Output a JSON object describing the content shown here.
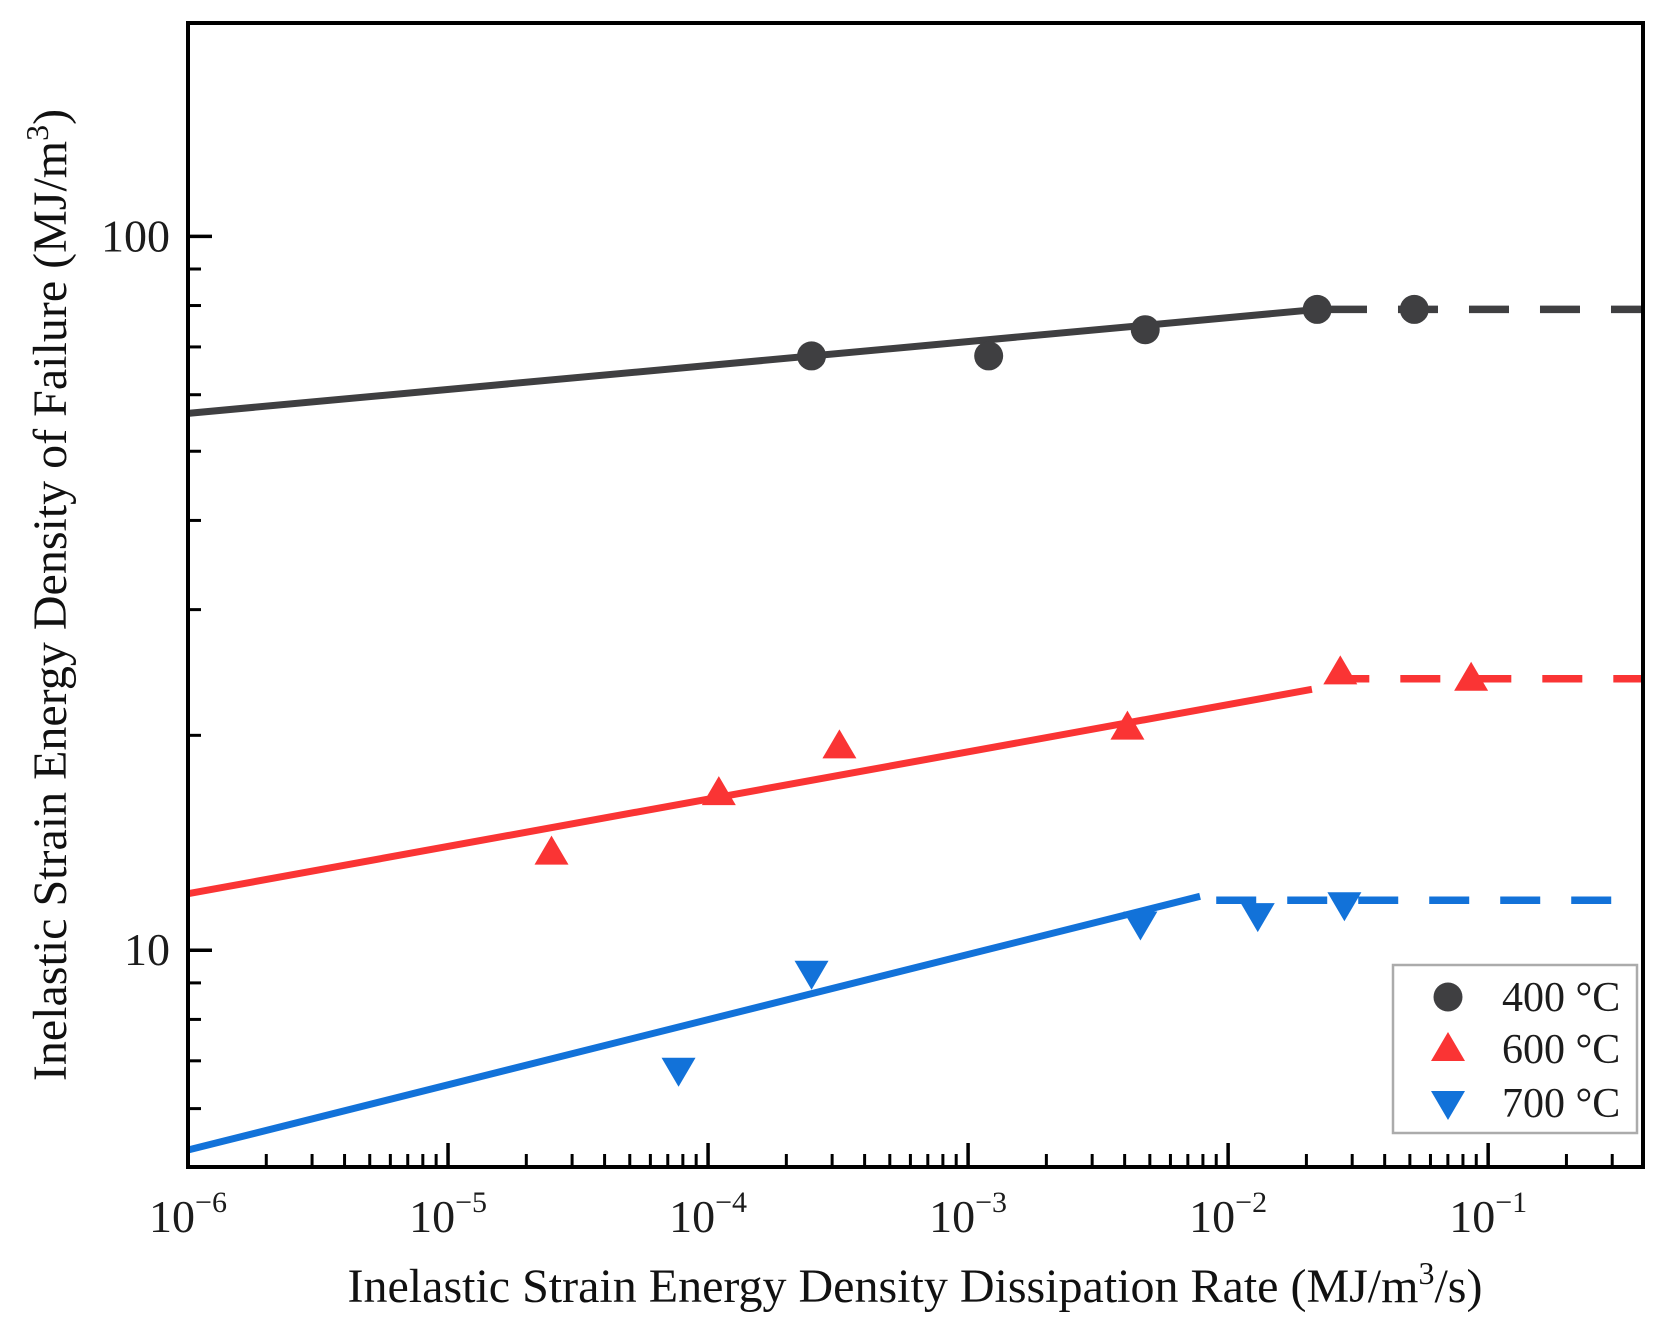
{
  "figure": {
    "background": "#ffffff",
    "frame_color": "#000000",
    "x_axis_title": {
      "main": "Inelastic Strain Energy Density Dissipation Rate (MJ/m",
      "sup": "3",
      "tail": "/s)"
    },
    "y_axis_title": {
      "main": "Inelastic Strain Energy Density of Failure (MJ/m",
      "sup": "3",
      "tail": ")"
    },
    "legend": {
      "entries": [
        {
          "label": "400 °C",
          "marker": "circle",
          "color": "#3f3f41"
        },
        {
          "label": "600 °C",
          "marker": "triangle-up",
          "color": "#fa3434"
        },
        {
          "label": "700 °C",
          "marker": "triangle-down",
          "color": "#1272d9"
        }
      ],
      "border_color": "#ababab"
    }
  },
  "chart_data": {
    "type": "scatter",
    "title": "",
    "xlabel": "Inelastic Strain Energy Density Dissipation Rate (MJ/m3/s)",
    "ylabel": "Inelastic Strain Energy Density of Failure (MJ/m3)",
    "x_scale": "log",
    "y_scale": "log",
    "xlim": [
      1e-06,
      0.394
    ],
    "ylim": [
      4.97,
      199
    ],
    "grid": false,
    "legend_position": "lower right",
    "x_ticks": [
      {
        "v": 1e-06,
        "base": "10",
        "exp": "−6"
      },
      {
        "v": 1e-05,
        "base": "10",
        "exp": "−5"
      },
      {
        "v": 0.0001,
        "base": "10",
        "exp": "−4"
      },
      {
        "v": 0.001,
        "base": "10",
        "exp": "−3"
      },
      {
        "v": 0.01,
        "base": "10",
        "exp": "−2"
      },
      {
        "v": 0.1,
        "base": "10",
        "exp": "−1"
      }
    ],
    "y_ticks": [
      {
        "v": 10,
        "label": "10"
      },
      {
        "v": 100,
        "label": "100"
      }
    ],
    "y_minor_ticks": [
      6,
      7,
      8,
      9,
      20,
      30,
      40,
      50,
      60,
      70,
      80,
      90
    ],
    "series": [
      {
        "name": "400 °C",
        "color": "#3f3f41",
        "marker": "circle",
        "points": [
          [
            0.00025,
            68
          ],
          [
            0.0012,
            68
          ],
          [
            0.0048,
            74
          ],
          [
            0.022,
            79
          ],
          [
            0.052,
            79
          ]
        ],
        "fit_line": {
          "start": [
            1e-06,
            56.5
          ],
          "end": [
            0.022,
            79
          ]
        },
        "plateau": {
          "level": 79,
          "from": 0.024,
          "to": 0.394
        }
      },
      {
        "name": "600 °C",
        "color": "#fa3434",
        "marker": "triangle-up",
        "points": [
          [
            2.5e-05,
            13.7
          ],
          [
            0.00011,
            16.6
          ],
          [
            0.00032,
            19.3
          ],
          [
            0.0041,
            20.5
          ],
          [
            0.027,
            24.5
          ],
          [
            0.086,
            24.0
          ]
        ],
        "fit_line": {
          "start": [
            1e-06,
            12.0
          ],
          "end": [
            0.021,
            23.2
          ]
        },
        "plateau": {
          "level": 24.0,
          "from": 0.0245,
          "to": 0.394
        }
      },
      {
        "name": "700 °C",
        "color": "#1272d9",
        "marker": "triangle-down",
        "points": [
          [
            7.7e-05,
            6.8
          ],
          [
            0.00025,
            9.3
          ],
          [
            0.0046,
            10.9
          ],
          [
            0.013,
            11.2
          ],
          [
            0.028,
            11.6
          ]
        ],
        "fit_line": {
          "start": [
            1e-06,
            5.25
          ],
          "end": [
            0.0078,
            11.9
          ]
        },
        "plateau": {
          "level": 11.75,
          "from": 0.009,
          "to": 0.394
        }
      }
    ]
  }
}
